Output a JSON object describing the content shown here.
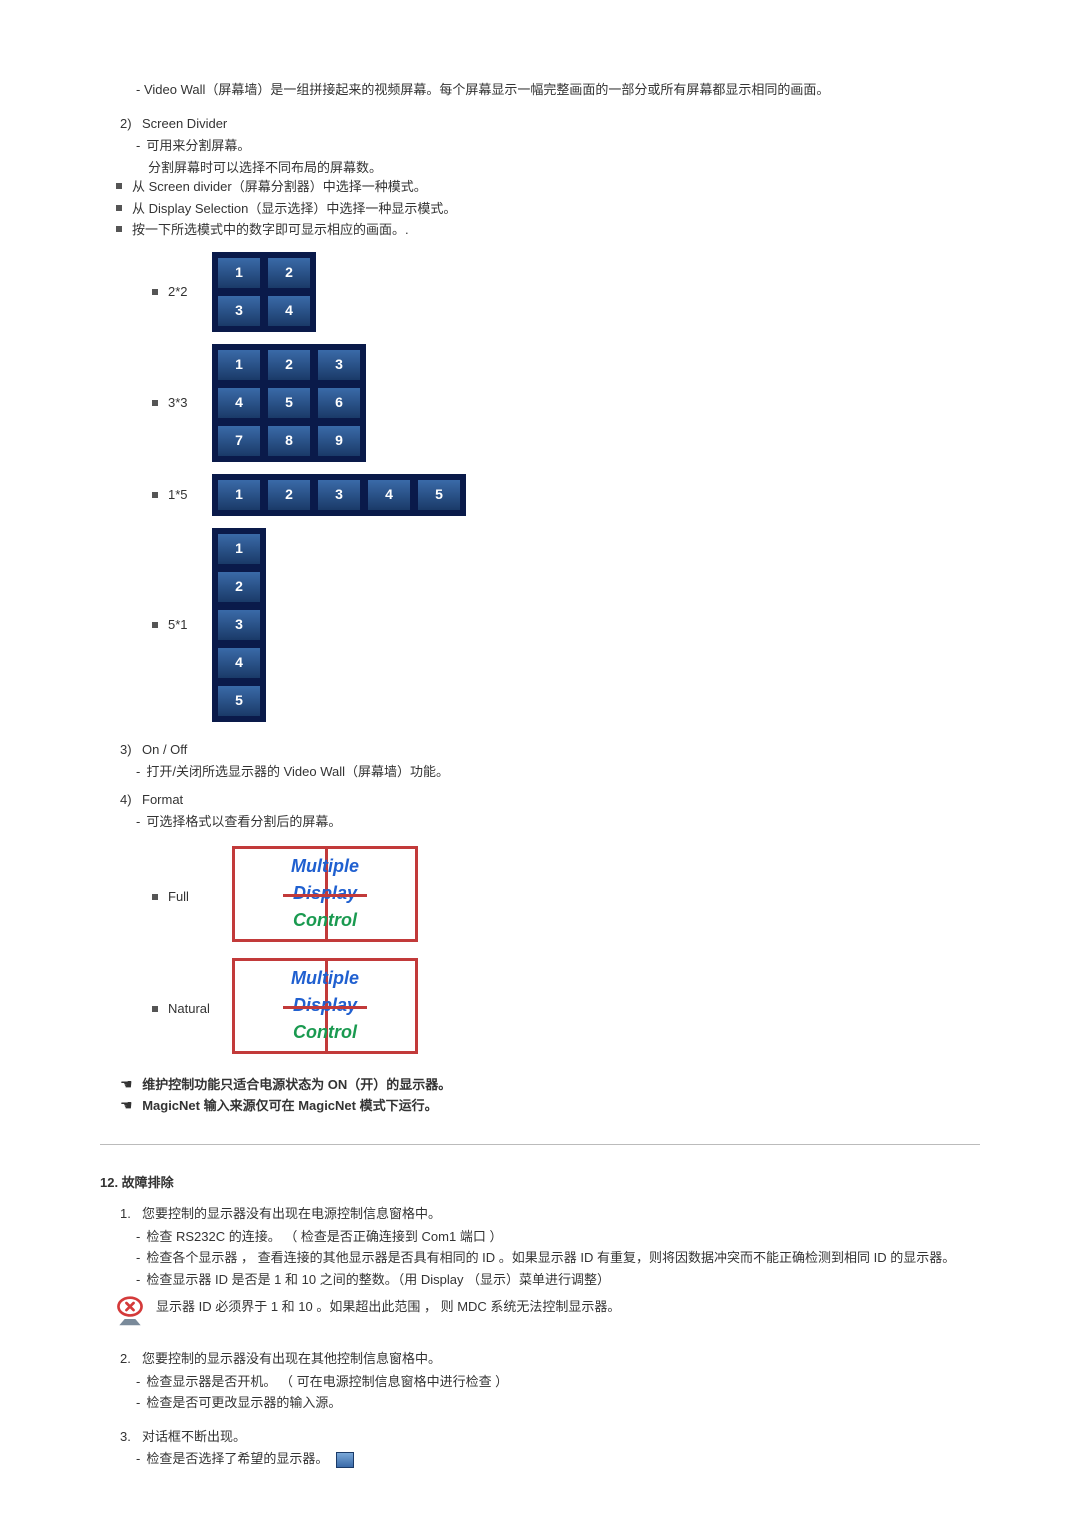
{
  "s1": {
    "vw_text": "- Video Wall（屏幕墙）是一组拼接起来的视频屏幕。每个屏幕显示一幅完整画面的一部分或所有屏幕都显示相同的画面。",
    "i2_label": "2)",
    "i2_title": "Screen Divider",
    "i2_d1": "可用来分割屏幕。",
    "i2_d1b": "分割屏幕时可以选择不同布局的屏幕数。",
    "i2_b1": "从 Screen divider（屏幕分割器）中选择一种模式。",
    "i2_b2": "从 Display Selection（显示选择）中选择一种显示模式。",
    "i2_b3": "按一下所选模式中的数字即可显示相应的画面。.",
    "grids": [
      {
        "label": "2*2",
        "cols": 2,
        "rows": 2,
        "count": 4
      },
      {
        "label": "3*3",
        "cols": 3,
        "rows": 3,
        "count": 9
      },
      {
        "label": "1*5",
        "cols": 5,
        "rows": 1,
        "count": 5
      },
      {
        "label": "5*1",
        "cols": 1,
        "rows": 5,
        "count": 5
      }
    ],
    "i3_label": "3)",
    "i3_title": "On / Off",
    "i3_d1": "打开/关闭所选显示器的 Video Wall（屏幕墙）功能。",
    "i4_label": "4)",
    "i4_title": "Format",
    "i4_d1": "可选择格式以查看分割后的屏幕。",
    "fmt": [
      {
        "label": "Full",
        "t1": "Multiple",
        "t2": "Display",
        "t3": "Control"
      },
      {
        "label": "Natural",
        "t1": "Multiple",
        "t2": "Display",
        "t3": "Control"
      }
    ],
    "note1": "维护控制功能只适合电源状态为 ON（开）的显示器。",
    "note2": "MagicNet 输入来源仅可在 MagicNet 模式下运行。"
  },
  "s2": {
    "heading": "12. 故障排除",
    "i1_label": "1.",
    "i1_text": "您要控制的显示器没有出现在电源控制信息窗格中。",
    "i1_d1": "检查 RS232C 的连接。 （ 检查是否正确连接到 Com1 端口 ）",
    "i1_d2": "检查各个显示器 ， 查看连接的其他显示器是否具有相同的 ID 。如果显示器 ID 有重复，则将因数据冲突而不能正确检测到相同 ID 的显示器。",
    "i1_d3": "检查显示器 ID 是否是 1 和 10 之间的整数。（用 Display （显示）菜单进行调整）",
    "i1_warn": "显示器 ID 必须界于 1 和 10 。如果超出此范围 ， 则 MDC 系统无法控制显示器。",
    "i2_label": "2.",
    "i2_text": "您要控制的显示器没有出现在其他控制信息窗格中。",
    "i2_d1": "检查显示器是否开机。 （ 可在电源控制信息窗格中进行检查 ）",
    "i2_d2": "检查是否可更改显示器的输入源。",
    "i3_label": "3.",
    "i3_text": "对话框不断出现。",
    "i3_d1": "检查是否选择了希望的显示器。"
  }
}
